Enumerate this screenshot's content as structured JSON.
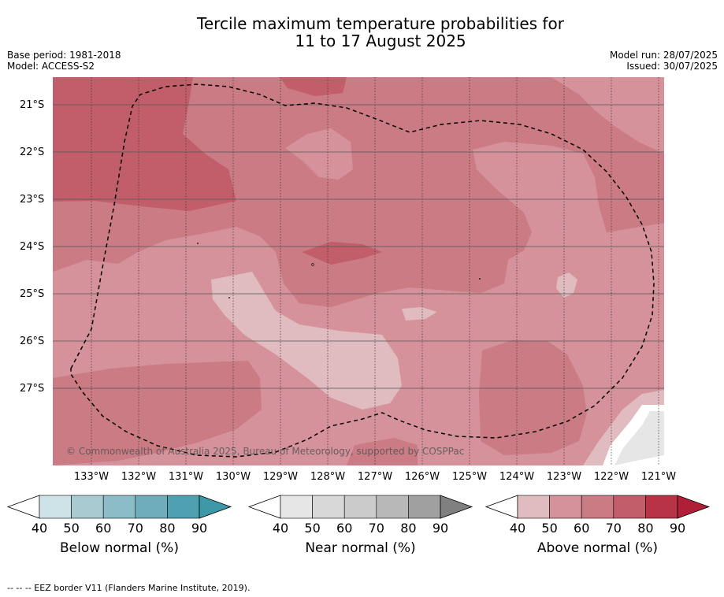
{
  "title_line1": "Tercile maximum temperature probabilities for",
  "title_line2": "11 to 17 August 2025",
  "meta_left": [
    "Base period: 1981-2018",
    "Model: ACCESS-S2"
  ],
  "meta_right": [
    "Model run: 28/07/2025",
    "Issued: 30/07/2025"
  ],
  "copyright": "© Commonwealth of Australia 2025, Bureau of Meteorology, supported by COSPPac",
  "lat_labels": [
    "21°S",
    "22°S",
    "23°S",
    "24°S",
    "25°S",
    "26°S",
    "27°S"
  ],
  "lon_labels": [
    "133°W",
    "132°W",
    "131°W",
    "130°W",
    "129°W",
    "128°W",
    "127°W",
    "126°W",
    "125°W",
    "124°W",
    "123°W",
    "122°W",
    "121°W"
  ],
  "colorbars": [
    {
      "label": "Below normal (%)",
      "ticks": [
        "40",
        "50",
        "60",
        "70",
        "80",
        "90"
      ],
      "colors": [
        "#cde3e8",
        "#a8cbd2",
        "#8cbcc7",
        "#6fadbb",
        "#4fa0b0",
        "#3d98a8"
      ]
    },
    {
      "label": "Near normal (%)",
      "ticks": [
        "40",
        "50",
        "60",
        "70",
        "80",
        "90"
      ],
      "colors": [
        "#e6e6e6",
        "#d8d8d8",
        "#cbcbcb",
        "#b8b8b8",
        "#a0a0a0",
        "#808080"
      ]
    },
    {
      "label": "Above normal (%)",
      "ticks": [
        "40",
        "50",
        "60",
        "70",
        "80",
        "90"
      ],
      "colors": [
        "#e0bcc0",
        "#d5929a",
        "#cb7b83",
        "#c25d6a",
        "#b93347",
        "#b01f38"
      ]
    }
  ],
  "footer": "--  --  -- EEZ border V11 (Flanders Marine Institute, 2019)."
}
